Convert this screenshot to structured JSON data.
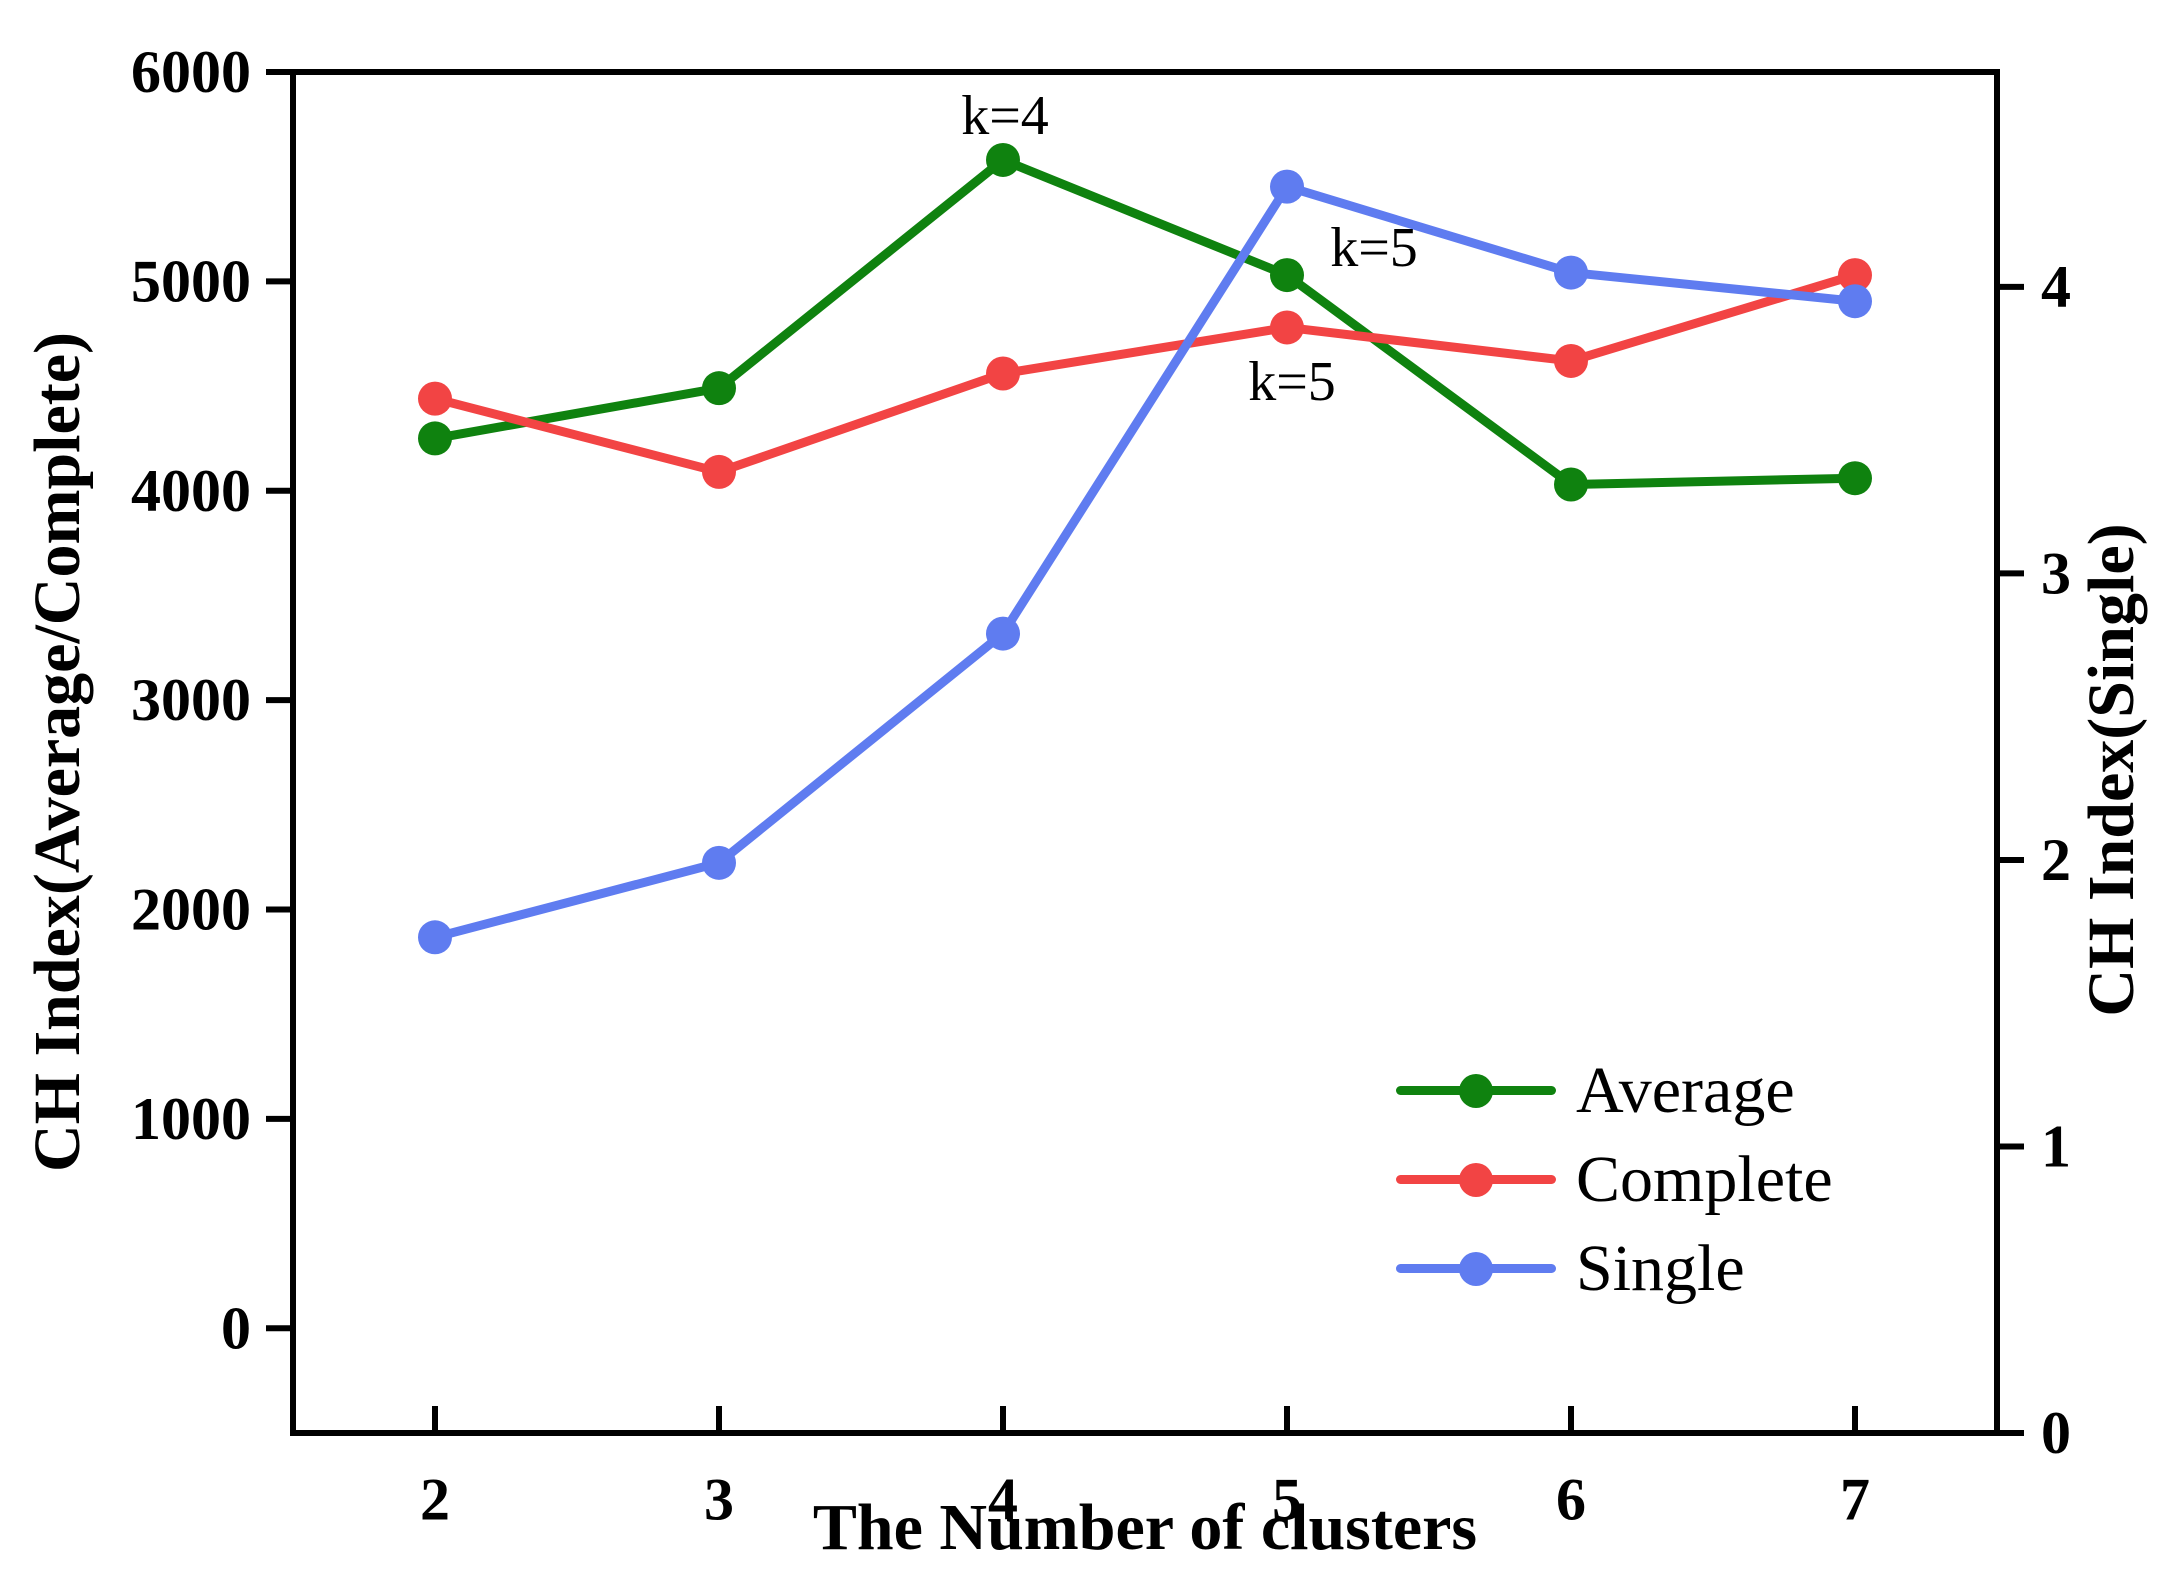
{
  "figure": {
    "background": "#ffffff",
    "frame_color": "#000000",
    "text_color": "#000000"
  },
  "chart_data": {
    "type": "line",
    "title": "",
    "xlabel": "The Number of clusters",
    "ylabel_left": "CH Index(Average/Complete)",
    "ylabel_right": "CH Index(Single)",
    "grid": false,
    "legend_position": "lower right",
    "x": [
      2,
      3,
      4,
      5,
      6,
      7
    ],
    "x_ticks": [
      2,
      3,
      4,
      5,
      6,
      7
    ],
    "x_range": [
      1.5,
      7.5
    ],
    "y_left_ticks": [
      0,
      1000,
      2000,
      3000,
      4000,
      5000,
      6000
    ],
    "y_left_range": [
      -500,
      6000
    ],
    "y_right_ticks": [
      0,
      1,
      2,
      3,
      4
    ],
    "y_right_range": [
      0,
      4.75
    ],
    "series": [
      {
        "name": "Average",
        "axis": "left",
        "color": "#0f820f",
        "values": [
          4250,
          4490,
          5580,
          5030,
          4030,
          4060
        ]
      },
      {
        "name": "Complete",
        "axis": "left",
        "color": "#f24444",
        "values": [
          4440,
          4090,
          4560,
          4780,
          4620,
          5030
        ]
      },
      {
        "name": "Single",
        "axis": "right",
        "color": "#5f7cf0",
        "values": [
          1.73,
          1.99,
          2.79,
          4.35,
          4.05,
          3.95
        ]
      }
    ],
    "annotations": [
      {
        "text": "k=4",
        "near_series": "Average",
        "at_x": 4
      },
      {
        "text": "k=5",
        "near_series": "Average",
        "at_x": 5
      },
      {
        "text": "k=5",
        "near_series": "Complete",
        "at_x": 5
      }
    ]
  }
}
